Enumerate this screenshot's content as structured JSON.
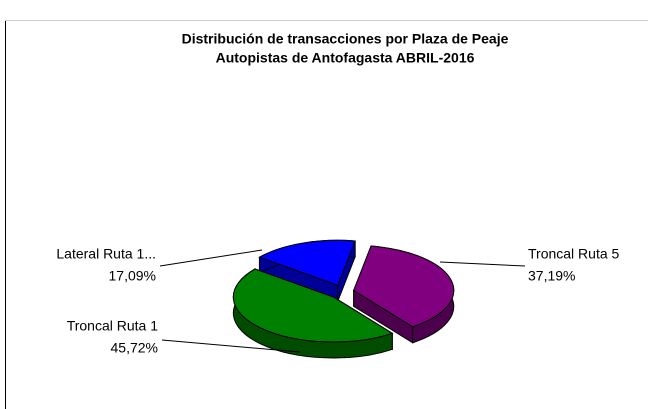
{
  "chart_data": {
    "type": "pie",
    "title": "Distribución de transacciones por Plaza de Peaje",
    "subtitle": "Autopistas de Antofagasta ABRIL-2016",
    "categories": [
      "Troncal Ruta 5",
      "Troncal Ruta 1",
      "Lateral Ruta 1..."
    ],
    "values": [
      37.19,
      45.72,
      17.09
    ],
    "value_labels": [
      "37,19%",
      "45,72%",
      "17,09%"
    ],
    "colors": [
      "#800080",
      "#008000",
      "#0000ff"
    ]
  }
}
